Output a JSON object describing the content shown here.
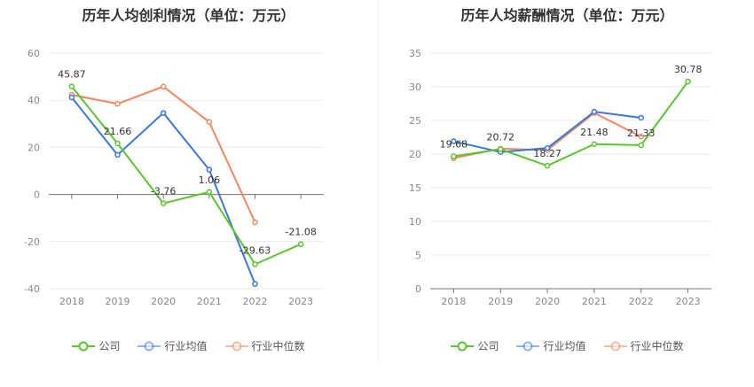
{
  "chart_data": [
    {
      "type": "line",
      "title": "历年人均创利情况（单位：万元）",
      "categories": [
        "2018",
        "2019",
        "2020",
        "2021",
        "2022",
        "2023"
      ],
      "ylim": [
        -40,
        60
      ],
      "yticks": [
        "60",
        "40",
        "20",
        "0",
        "-20",
        "-40"
      ],
      "series": [
        {
          "name": "公司",
          "color": "#5ac530",
          "values": [
            45.87,
            21.66,
            -3.76,
            1.06,
            -29.63,
            -21.08
          ],
          "labels": [
            "45.87",
            "21.66",
            "-3.76",
            "1.06",
            "-29.63",
            "-21.08"
          ]
        },
        {
          "name": "行业均值",
          "color": "#3b77e0",
          "values": [
            41.2,
            16.8,
            34.6,
            10.5,
            -38.0,
            null
          ]
        },
        {
          "name": "行业中位数",
          "color": "#f3875f",
          "values": [
            42.3,
            38.5,
            45.8,
            30.8,
            -11.8,
            null
          ]
        }
      ],
      "grid": true,
      "legend_position": "bottom-center"
    },
    {
      "type": "line",
      "title": "历年人均薪酬情况（单位：万元）",
      "categories": [
        "2018",
        "2019",
        "2020",
        "2021",
        "2022",
        "2023"
      ],
      "ylim": [
        0,
        35
      ],
      "yticks": [
        "35",
        "30",
        "25",
        "20",
        "15",
        "10",
        "5",
        "0"
      ],
      "series": [
        {
          "name": "公司",
          "color": "#5ac530",
          "values": [
            19.68,
            20.72,
            18.27,
            21.48,
            21.33,
            30.78
          ],
          "labels": [
            "19.68",
            "20.72",
            "18.27",
            "21.48",
            "21.33",
            "30.78"
          ]
        },
        {
          "name": "行业均值",
          "color": "#3b77e0",
          "values": [
            21.9,
            20.3,
            20.9,
            26.3,
            25.4,
            null
          ]
        },
        {
          "name": "行业中位数",
          "color": "#f3875f",
          "values": [
            19.4,
            20.8,
            20.6,
            26.1,
            22.6,
            null
          ]
        }
      ],
      "grid": true,
      "legend_position": "bottom-center"
    }
  ]
}
